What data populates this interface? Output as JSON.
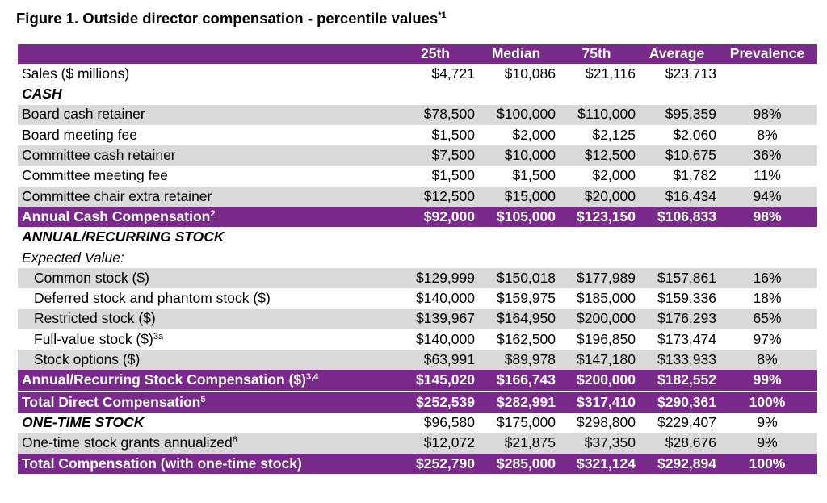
{
  "title": {
    "text": "Figure 1. Outside director compensation - percentile values",
    "footnote": "*1"
  },
  "colors": {
    "purple": "#7a2a8b",
    "gray": "#d9d9d9"
  },
  "columns": [
    "25th",
    "Median",
    "75th",
    "Average",
    "Prevalence"
  ],
  "rows": [
    {
      "label": "Sales ($ millions)",
      "fn": "",
      "style": "plain",
      "indent": false,
      "values": [
        "$4,721",
        "$10,086",
        "$21,116",
        "$23,713",
        ""
      ]
    },
    {
      "label": "CASH",
      "fn": "",
      "style": "section",
      "indent": false,
      "values": [
        "",
        "",
        "",
        "",
        ""
      ]
    },
    {
      "label": "Board cash retainer",
      "fn": "",
      "style": "gray",
      "indent": false,
      "values": [
        "$78,500",
        "$100,000",
        "$110,000",
        "$95,359",
        "98%"
      ]
    },
    {
      "label": "Board meeting fee",
      "fn": "",
      "style": "plain",
      "indent": false,
      "values": [
        "$1,500",
        "$2,000",
        "$2,125",
        "$2,060",
        "8%"
      ]
    },
    {
      "label": "Committee cash retainer",
      "fn": "",
      "style": "gray",
      "indent": false,
      "values": [
        "$7,500",
        "$10,000",
        "$12,500",
        "$10,675",
        "36%"
      ]
    },
    {
      "label": "Committee meeting fee",
      "fn": "",
      "style": "plain",
      "indent": false,
      "values": [
        "$1,500",
        "$1,500",
        "$2,000",
        "$1,782",
        "11%"
      ]
    },
    {
      "label": "Committee chair extra retainer",
      "fn": "",
      "style": "gray",
      "indent": false,
      "values": [
        "$12,500",
        "$15,000",
        "$20,000",
        "$16,434",
        "94%"
      ]
    },
    {
      "label": "Annual Cash Compensation",
      "fn": "2",
      "style": "purple",
      "indent": false,
      "values": [
        "$92,000",
        "$105,000",
        "$123,150",
        "$106,833",
        "98%"
      ]
    },
    {
      "label": "ANNUAL/RECURRING STOCK",
      "fn": "",
      "style": "section",
      "indent": false,
      "values": [
        "",
        "",
        "",
        "",
        ""
      ]
    },
    {
      "label": "Expected Value:",
      "fn": "",
      "style": "italic",
      "indent": false,
      "values": [
        "",
        "",
        "",
        "",
        ""
      ]
    },
    {
      "label": "Common stock ($)",
      "fn": "",
      "style": "gray",
      "indent": true,
      "values": [
        "$129,999",
        "$150,018",
        "$177,989",
        "$157,861",
        "16%"
      ]
    },
    {
      "label": "Deferred stock and phantom stock ($)",
      "fn": "",
      "style": "plain",
      "indent": true,
      "values": [
        "$140,000",
        "$159,975",
        "$185,000",
        "$159,336",
        "18%"
      ]
    },
    {
      "label": "Restricted stock ($)",
      "fn": "",
      "style": "gray",
      "indent": true,
      "values": [
        "$139,967",
        "$164,950",
        "$200,000",
        "$176,293",
        "65%"
      ]
    },
    {
      "label": "Full-value stock ($)",
      "fn": "3a",
      "style": "plain",
      "indent": true,
      "values": [
        "$140,000",
        "$162,500",
        "$196,850",
        "$173,474",
        "97%"
      ]
    },
    {
      "label": "Stock options ($)",
      "fn": "",
      "style": "gray",
      "indent": true,
      "values": [
        "$63,991",
        "$89,978",
        "$147,180",
        "$133,933",
        "8%"
      ]
    },
    {
      "label": "Annual/Recurring Stock Compensation ($)",
      "fn": "3,4",
      "style": "purple",
      "indent": false,
      "values": [
        "$145,020",
        "$166,743",
        "$200,000",
        "$182,552",
        "99%"
      ]
    },
    {
      "label": "Total Direct Compensation",
      "fn": "5",
      "style": "purple total",
      "indent": false,
      "values": [
        "$252,539",
        "$282,991",
        "$317,410",
        "$290,361",
        "100%"
      ]
    },
    {
      "label": "ONE-TIME STOCK",
      "fn": "",
      "style": "section",
      "indent": false,
      "values": [
        "$96,580",
        "$175,000",
        "$298,800",
        "$229,407",
        "9%"
      ]
    },
    {
      "label": "One-time stock grants annualized",
      "fn": "6",
      "style": "gray",
      "indent": false,
      "values": [
        "$12,072",
        "$21,875",
        "$37,350",
        "$28,676",
        "9%"
      ]
    },
    {
      "label": "Total Compensation (with one-time stock)",
      "fn": "",
      "style": "purple",
      "indent": false,
      "values": [
        "$252,790",
        "$285,000",
        "$321,124",
        "$292,894",
        "100%"
      ]
    }
  ]
}
